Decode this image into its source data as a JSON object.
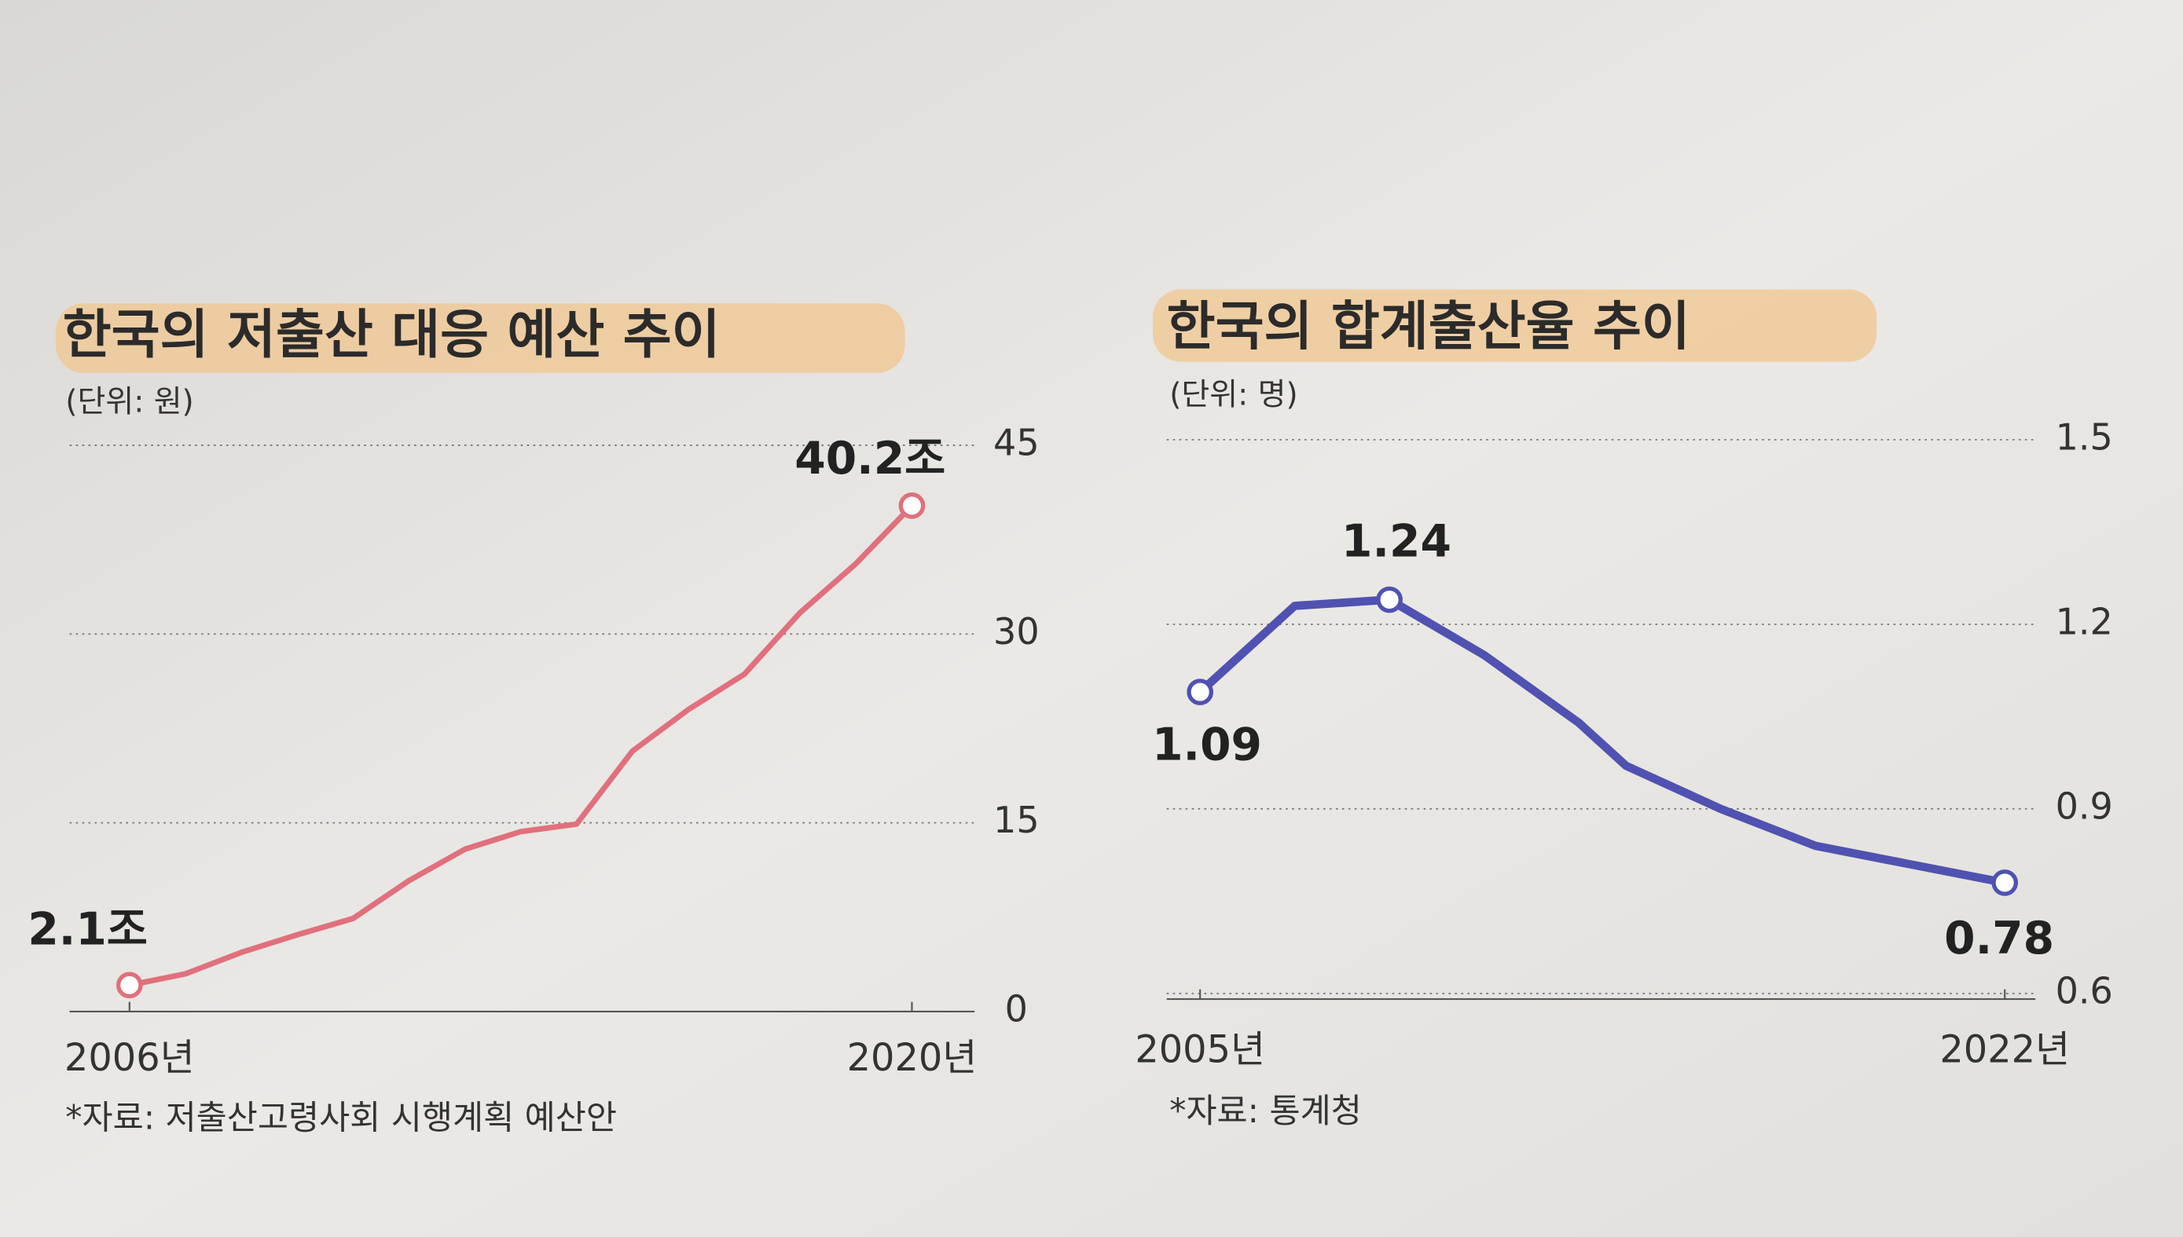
{
  "chart_data": [
    {
      "type": "line",
      "title": "한국의 저출산 대응 예산 추이",
      "unit": "(단위: 원)",
      "x": [
        2006,
        2007,
        2008,
        2009,
        2010,
        2011,
        2012,
        2013,
        2014,
        2015,
        2016,
        2017,
        2018,
        2019,
        2020
      ],
      "series": [
        {
          "color": "#e0707c",
          "values": [
            2.1,
            3.0,
            4.7,
            6.1,
            7.4,
            10.4,
            12.9,
            14.3,
            14.9,
            20.7,
            24.0,
            26.8,
            31.7,
            35.6,
            40.2
          ],
          "value_labels": [
            "2.1조",
            null,
            null,
            null,
            null,
            null,
            null,
            null,
            null,
            null,
            null,
            null,
            null,
            null,
            "40.2조"
          ]
        }
      ],
      "xlim": [
        2006,
        2020
      ],
      "xticks": [
        {
          "value": 2006,
          "label": "2006년"
        },
        {
          "value": 2020,
          "label": "2020년"
        }
      ],
      "ylim": [
        0,
        45
      ],
      "yticks": [
        0,
        15,
        30,
        45
      ],
      "grid": true,
      "source": "*자료: 저출산고령사회 시행계획 예산안"
    },
    {
      "type": "line",
      "title": "한국의 합계출산율 추이",
      "unit": "(단위: 명)",
      "x": [
        2005,
        2007,
        2009,
        2011,
        2013,
        2014,
        2016,
        2018,
        2020,
        2022
      ],
      "series": [
        {
          "color": "#4f52b0",
          "values": [
            1.09,
            1.23,
            1.24,
            1.15,
            1.04,
            0.97,
            0.9,
            0.84,
            0.81,
            0.78
          ],
          "value_labels": [
            "1.09",
            null,
            "1.24",
            null,
            null,
            null,
            null,
            null,
            null,
            "0.78"
          ]
        }
      ],
      "xlim": [
        2005,
        2022
      ],
      "xticks": [
        {
          "value": 2005,
          "label": "2005년"
        },
        {
          "value": 2022,
          "label": "2022년"
        }
      ],
      "ylim": [
        0.6,
        1.5
      ],
      "yticks": [
        0.6,
        0.9,
        1.2,
        1.5
      ],
      "grid": true,
      "source": "*자료: 통계청"
    }
  ]
}
